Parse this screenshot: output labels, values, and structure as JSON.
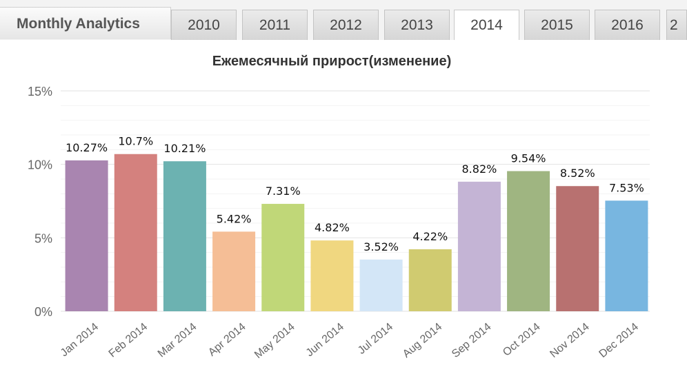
{
  "header": {
    "app_title": "Monthly Analytics",
    "tabs": [
      {
        "label": "2010",
        "active": false
      },
      {
        "label": "2011",
        "active": false
      },
      {
        "label": "2012",
        "active": false
      },
      {
        "label": "2013",
        "active": false
      },
      {
        "label": "2014",
        "active": true
      },
      {
        "label": "2015",
        "active": false
      },
      {
        "label": "2016",
        "active": false
      },
      {
        "label": "2",
        "active": false
      }
    ]
  },
  "chart_data": {
    "type": "bar",
    "title": "Ежемесячный прирост(изменение)",
    "xlabel": "",
    "ylabel": "",
    "categories": [
      "Jan 2014",
      "Feb 2014",
      "Mar 2014",
      "Apr 2014",
      "May 2014",
      "Jun 2014",
      "Jul 2014",
      "Aug 2014",
      "Sep 2014",
      "Oct 2014",
      "Nov 2014",
      "Dec 2014"
    ],
    "values": [
      10.27,
      10.7,
      10.21,
      5.42,
      7.31,
      4.82,
      3.52,
      4.22,
      8.82,
      9.54,
      8.52,
      7.53
    ],
    "data_labels": [
      "10.27%",
      "10.7%",
      "10.21%",
      "5.42%",
      "7.31%",
      "4.82%",
      "3.52%",
      "4.22%",
      "8.82%",
      "9.54%",
      "8.52%",
      "7.53%"
    ],
    "colors": [
      "#a985b0",
      "#d4817e",
      "#6cb2b1",
      "#f5be96",
      "#c0d778",
      "#f0d780",
      "#d3e6f7",
      "#d0cb70",
      "#c4b4d5",
      "#9fb581",
      "#b87170",
      "#78b6e0"
    ],
    "y_ticks": [
      0,
      5,
      10,
      15
    ],
    "y_tick_labels": [
      "0%",
      "5%",
      "10%",
      "15%"
    ],
    "ylim": [
      0,
      15
    ],
    "grid": true,
    "legend": "none"
  }
}
